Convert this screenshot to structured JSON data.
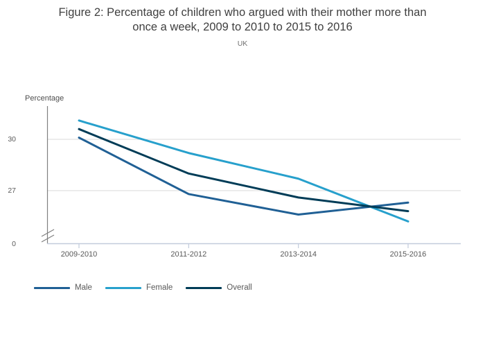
{
  "figure": {
    "title_lines": [
      "Figure 2: Percentage of children who argued with their mother more than",
      "once a week, 2009 to 2010 to 2015 to 2016"
    ],
    "subtitle": "UK"
  },
  "chart_data": {
    "type": "line",
    "title": "Figure 2: Percentage of children who argued with their mother more than once a week, 2009 to 2010 to 2015 to 2016",
    "subtitle": "UK",
    "categories": [
      "2009-2010",
      "2011-2012",
      "2013-2014",
      "2015-2016"
    ],
    "series": [
      {
        "name": "Male",
        "color": "#206095",
        "values": [
          30.1,
          26.8,
          25.6,
          26.3
        ]
      },
      {
        "name": "Female",
        "color": "#27A0CC",
        "values": [
          31.1,
          29.2,
          27.7,
          25.2
        ]
      },
      {
        "name": "Overall",
        "color": "#003C57",
        "values": [
          30.6,
          28.0,
          26.6,
          25.8
        ]
      }
    ],
    "xlabel": "",
    "ylabel": "Percentage",
    "yticks": [
      0,
      27,
      30
    ],
    "ylim_display": [
      24.2,
      31.6
    ],
    "axis_break": true,
    "grid": "horizontal",
    "legend_position": "bottom-left",
    "colors": {
      "grid": "#d9d9d9",
      "y_axis_line": "#7f7f7f",
      "x_axis_line": "#c2cbdc",
      "tick_text": "#595959",
      "title_text": "#404040"
    }
  }
}
